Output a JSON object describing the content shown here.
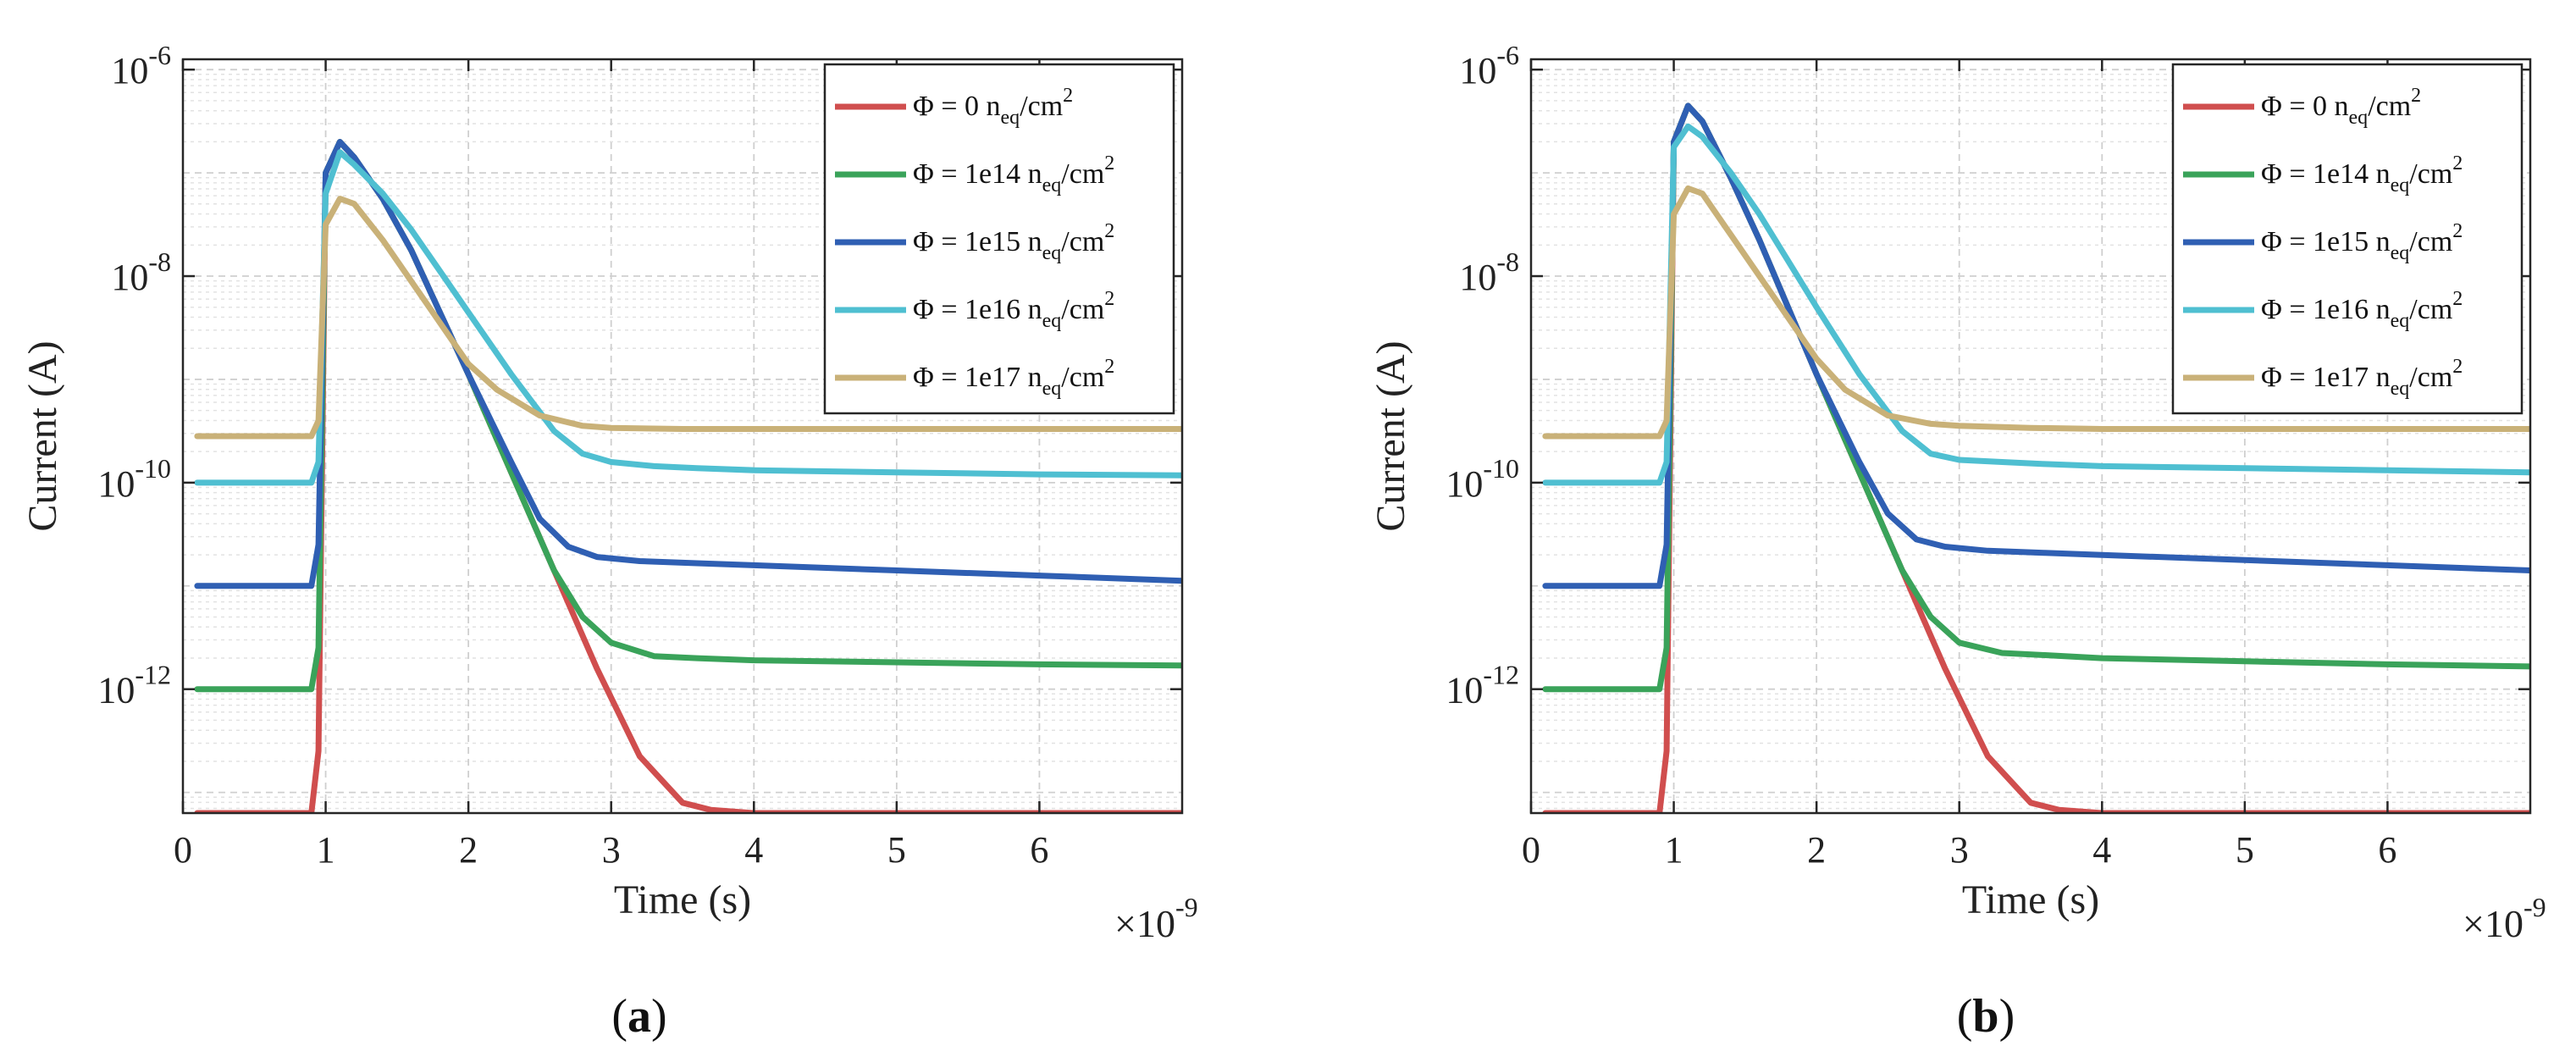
{
  "chart_data": [
    {
      "panel_label": "(a)",
      "type": "line",
      "title": "",
      "xlabel": "Time (s)",
      "ylabel": "Current (A)",
      "x_multiplier": "×10",
      "x_multiplier_exp": "-9",
      "x_scale": 1e-09,
      "xlim": [
        0,
        7
      ],
      "xticks": [
        "0",
        "1",
        "2",
        "3",
        "4",
        "5",
        "6"
      ],
      "yscale": "log",
      "ylim_log10": [
        -13.2,
        -5.9
      ],
      "yticks": [
        {
          "base": "10",
          "exp": "-6",
          "log": -6
        },
        {
          "base": "10",
          "exp": "-8",
          "log": -8
        },
        {
          "base": "10",
          "exp": "-10",
          "log": -10
        },
        {
          "base": "10",
          "exp": "-12",
          "log": -12
        }
      ],
      "grid": true,
      "legend_position": "top-right",
      "series": [
        {
          "name": "Φ = 0",
          "unit": "n",
          "unit_sub": "eq",
          "unit_mid": "/cm",
          "unit_sup": "2",
          "color": "#d04e4e",
          "x": [
            0.1,
            0.9,
            0.95,
            1.0,
            1.1,
            1.2,
            1.4,
            1.6,
            1.8,
            2.0,
            2.3,
            2.6,
            2.9,
            3.2,
            3.5,
            3.7,
            4.0,
            5.0,
            6.0,
            7.0
          ],
          "y_log10": [
            -13.2,
            -13.2,
            -12.6,
            -7.0,
            -6.7,
            -6.85,
            -7.25,
            -7.75,
            -8.35,
            -8.95,
            -9.9,
            -10.85,
            -11.8,
            -12.65,
            -13.1,
            -13.17,
            -13.2,
            -13.2,
            -13.2,
            -13.2
          ]
        },
        {
          "name": "Φ = 1e14",
          "unit": "n",
          "unit_sub": "eq",
          "unit_mid": "/cm",
          "unit_sup": "2",
          "color": "#3aa35a",
          "x": [
            0.1,
            0.9,
            0.95,
            1.0,
            1.1,
            1.2,
            1.4,
            1.6,
            1.8,
            2.0,
            2.3,
            2.6,
            2.8,
            3.0,
            3.3,
            3.6,
            4.0,
            5.0,
            6.0,
            7.0
          ],
          "y_log10": [
            -12.0,
            -12.0,
            -11.6,
            -7.0,
            -6.7,
            -6.85,
            -7.25,
            -7.75,
            -8.35,
            -8.95,
            -9.9,
            -10.85,
            -11.3,
            -11.55,
            -11.68,
            -11.7,
            -11.72,
            -11.74,
            -11.76,
            -11.77
          ]
        },
        {
          "name": "Φ = 1e15",
          "unit": "n",
          "unit_sub": "eq",
          "unit_mid": "/cm",
          "unit_sup": "2",
          "color": "#2f5fb3",
          "x": [
            0.1,
            0.9,
            0.95,
            1.0,
            1.1,
            1.2,
            1.4,
            1.6,
            1.8,
            2.0,
            2.3,
            2.5,
            2.7,
            2.9,
            3.2,
            3.6,
            4.0,
            5.0,
            6.0,
            7.0
          ],
          "y_log10": [
            -11.0,
            -11.0,
            -10.6,
            -7.0,
            -6.7,
            -6.85,
            -7.25,
            -7.75,
            -8.35,
            -8.95,
            -9.8,
            -10.35,
            -10.62,
            -10.72,
            -10.76,
            -10.78,
            -10.8,
            -10.85,
            -10.9,
            -10.95
          ]
        },
        {
          "name": "Φ = 1e16",
          "unit": "n",
          "unit_sub": "eq",
          "unit_mid": "/cm",
          "unit_sup": "2",
          "color": "#4fbfd1",
          "x": [
            0.1,
            0.9,
            0.95,
            1.0,
            1.1,
            1.2,
            1.4,
            1.6,
            1.8,
            2.0,
            2.3,
            2.6,
            2.8,
            3.0,
            3.3,
            3.6,
            4.0,
            5.0,
            6.0,
            7.0
          ],
          "y_log10": [
            -10.0,
            -10.0,
            -9.8,
            -7.2,
            -6.8,
            -6.92,
            -7.2,
            -7.55,
            -7.95,
            -8.35,
            -8.95,
            -9.5,
            -9.72,
            -9.8,
            -9.84,
            -9.86,
            -9.88,
            -9.9,
            -9.92,
            -9.93
          ]
        },
        {
          "name": "Φ = 1e17",
          "unit": "n",
          "unit_sub": "eq",
          "unit_mid": "/cm",
          "unit_sup": "2",
          "color": "#c9b178",
          "x": [
            0.1,
            0.9,
            0.95,
            1.0,
            1.1,
            1.2,
            1.4,
            1.6,
            1.8,
            2.0,
            2.2,
            2.5,
            2.8,
            3.0,
            3.5,
            4.0,
            5.0,
            6.0,
            7.0
          ],
          "y_log10": [
            -9.55,
            -9.55,
            -9.4,
            -7.5,
            -7.25,
            -7.3,
            -7.65,
            -8.05,
            -8.45,
            -8.85,
            -9.1,
            -9.35,
            -9.45,
            -9.47,
            -9.48,
            -9.48,
            -9.48,
            -9.48,
            -9.48
          ]
        }
      ]
    },
    {
      "panel_label": "(b)",
      "type": "line",
      "title": "",
      "xlabel": "Time (s)",
      "ylabel": "Current (A)",
      "x_multiplier": "×10",
      "x_multiplier_exp": "-9",
      "x_scale": 1e-09,
      "xlim": [
        0,
        7
      ],
      "xticks": [
        "0",
        "1",
        "2",
        "3",
        "4",
        "5",
        "6"
      ],
      "yscale": "log",
      "ylim_log10": [
        -13.2,
        -5.9
      ],
      "yticks": [
        {
          "base": "10",
          "exp": "-6",
          "log": -6
        },
        {
          "base": "10",
          "exp": "-8",
          "log": -8
        },
        {
          "base": "10",
          "exp": "-10",
          "log": -10
        },
        {
          "base": "10",
          "exp": "-12",
          "log": -12
        }
      ],
      "grid": true,
      "legend_position": "top-right",
      "series": [
        {
          "name": "Φ = 0",
          "unit": "n",
          "unit_sub": "eq",
          "unit_mid": "/cm",
          "unit_sup": "2",
          "color": "#d04e4e",
          "x": [
            0.1,
            0.9,
            0.95,
            1.0,
            1.1,
            1.2,
            1.4,
            1.6,
            1.8,
            2.0,
            2.3,
            2.6,
            2.9,
            3.2,
            3.5,
            3.7,
            4.0,
            5.0,
            6.0,
            7.0
          ],
          "y_log10": [
            -13.2,
            -13.2,
            -12.6,
            -6.7,
            -6.35,
            -6.5,
            -7.05,
            -7.65,
            -8.3,
            -8.95,
            -9.9,
            -10.85,
            -11.8,
            -12.65,
            -13.1,
            -13.17,
            -13.2,
            -13.2,
            -13.2,
            -13.2
          ]
        },
        {
          "name": "Φ = 1e14",
          "unit": "n",
          "unit_sub": "eq",
          "unit_mid": "/cm",
          "unit_sup": "2",
          "color": "#3aa35a",
          "x": [
            0.1,
            0.9,
            0.95,
            1.0,
            1.1,
            1.2,
            1.4,
            1.6,
            1.8,
            2.0,
            2.3,
            2.6,
            2.8,
            3.0,
            3.3,
            3.6,
            4.0,
            5.0,
            6.0,
            7.0
          ],
          "y_log10": [
            -12.0,
            -12.0,
            -11.6,
            -6.7,
            -6.35,
            -6.5,
            -7.05,
            -7.65,
            -8.3,
            -8.95,
            -9.9,
            -10.85,
            -11.3,
            -11.55,
            -11.65,
            -11.67,
            -11.7,
            -11.73,
            -11.76,
            -11.78
          ]
        },
        {
          "name": "Φ = 1e15",
          "unit": "n",
          "unit_sub": "eq",
          "unit_mid": "/cm",
          "unit_sup": "2",
          "color": "#2f5fb3",
          "x": [
            0.1,
            0.9,
            0.95,
            1.0,
            1.1,
            1.2,
            1.4,
            1.6,
            1.8,
            2.0,
            2.3,
            2.5,
            2.7,
            2.9,
            3.2,
            3.6,
            4.0,
            5.0,
            6.0,
            7.0
          ],
          "y_log10": [
            -11.0,
            -11.0,
            -10.6,
            -6.7,
            -6.35,
            -6.5,
            -7.05,
            -7.65,
            -8.3,
            -8.95,
            -9.8,
            -10.3,
            -10.55,
            -10.62,
            -10.66,
            -10.68,
            -10.7,
            -10.75,
            -10.8,
            -10.85
          ]
        },
        {
          "name": "Φ = 1e16",
          "unit": "n",
          "unit_sub": "eq",
          "unit_mid": "/cm",
          "unit_sup": "2",
          "color": "#4fbfd1",
          "x": [
            0.1,
            0.9,
            0.95,
            1.0,
            1.1,
            1.2,
            1.4,
            1.6,
            1.8,
            2.0,
            2.3,
            2.6,
            2.8,
            3.0,
            3.3,
            3.6,
            4.0,
            5.0,
            6.0,
            7.0
          ],
          "y_log10": [
            -10.0,
            -10.0,
            -9.8,
            -6.75,
            -6.55,
            -6.65,
            -7.0,
            -7.4,
            -7.85,
            -8.3,
            -8.95,
            -9.5,
            -9.72,
            -9.78,
            -9.8,
            -9.82,
            -9.84,
            -9.86,
            -9.88,
            -9.9
          ]
        },
        {
          "name": "Φ = 1e17",
          "unit": "n",
          "unit_sub": "eq",
          "unit_mid": "/cm",
          "unit_sup": "2",
          "color": "#c9b178",
          "x": [
            0.1,
            0.9,
            0.95,
            1.0,
            1.1,
            1.2,
            1.4,
            1.6,
            1.8,
            2.0,
            2.2,
            2.5,
            2.8,
            3.0,
            3.5,
            4.0,
            5.0,
            6.0,
            7.0
          ],
          "y_log10": [
            -9.55,
            -9.55,
            -9.4,
            -7.4,
            -7.15,
            -7.2,
            -7.6,
            -8.0,
            -8.4,
            -8.8,
            -9.1,
            -9.35,
            -9.43,
            -9.45,
            -9.47,
            -9.48,
            -9.48,
            -9.48,
            -9.48
          ]
        }
      ]
    }
  ]
}
